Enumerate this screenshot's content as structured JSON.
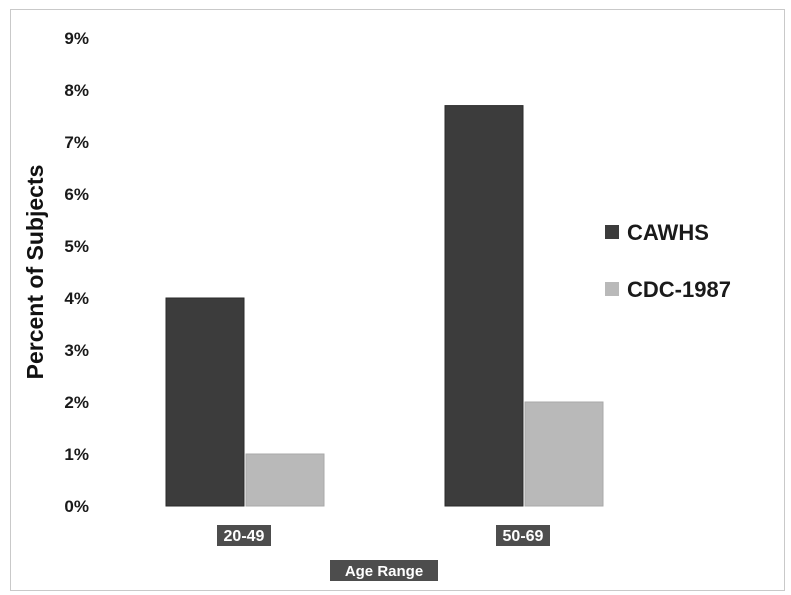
{
  "chart_data": {
    "type": "bar",
    "categories": [
      "20-49",
      "50-69"
    ],
    "series": [
      {
        "name": "CAWHS",
        "values": [
          4.0,
          7.7
        ]
      },
      {
        "name": "CDC-1987",
        "values": [
          1.0,
          2.0
        ]
      }
    ],
    "title": "",
    "xlabel": "Age Range",
    "ylabel": "Percent of Subjects",
    "ylim": [
      0,
      9
    ],
    "yticks": [
      "0%",
      "1%",
      "2%",
      "3%",
      "4%",
      "5%",
      "6%",
      "7%",
      "8%",
      "9%"
    ],
    "grid": false,
    "legend_position": "right",
    "colors": {
      "CAWHS": "#3c3c3c",
      "CDC-1987": "#b9b9b9"
    }
  }
}
